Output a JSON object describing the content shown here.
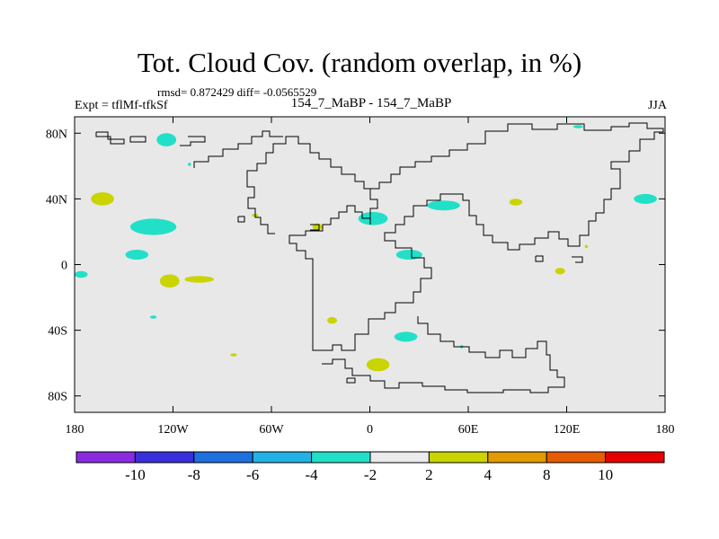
{
  "chart_data": {
    "type": "heatmap",
    "title": "Tot. Cloud Cov. (random overlap, in %)",
    "stats": "rmsd= 0.872429  diff= -0.0565529",
    "subtitle": "154_7_MaBP - 154_7_MaBP",
    "experiment": "Expt = tflMf-tfkSf",
    "season": "JJA",
    "xlim": [
      -180,
      180
    ],
    "ylim": [
      -90,
      90
    ],
    "x_ticks": [
      {
        "value": -180,
        "label": "180"
      },
      {
        "value": -120,
        "label": "120W"
      },
      {
        "value": -60,
        "label": "60W"
      },
      {
        "value": 0,
        "label": "0"
      },
      {
        "value": 60,
        "label": "60E"
      },
      {
        "value": 120,
        "label": "120E"
      },
      {
        "value": 180,
        "label": "180"
      }
    ],
    "y_ticks": [
      {
        "value": 80,
        "label": "80N"
      },
      {
        "value": 40,
        "label": "40N"
      },
      {
        "value": 0,
        "label": "0"
      },
      {
        "value": -40,
        "label": "40S"
      },
      {
        "value": -80,
        "label": "80S"
      }
    ],
    "colorbar": {
      "colors": [
        "#8a2be2",
        "#3a2fdc",
        "#1e6fe0",
        "#22b2e6",
        "#22e0c8",
        "#ebebeb",
        "#c9d400",
        "#e39a00",
        "#e65c00",
        "#e60000"
      ],
      "labels": [
        {
          "boundary": 1,
          "text": "-10"
        },
        {
          "boundary": 2,
          "text": "-8"
        },
        {
          "boundary": 3,
          "text": "-6"
        },
        {
          "boundary": 4,
          "text": "-4"
        },
        {
          "boundary": 5,
          "text": "-2"
        },
        {
          "boundary": 6,
          "text": "2"
        },
        {
          "boundary": 7,
          "text": "4"
        },
        {
          "boundary": 8,
          "text": "8"
        },
        {
          "boundary": 9,
          "text": "10"
        }
      ]
    },
    "anomaly_patches": [
      {
        "lon": -176,
        "lat": -6,
        "rx": 4,
        "ry": 2,
        "class": "-4 to -2",
        "color": "#22e0c8"
      },
      {
        "lon": -124,
        "lat": 76,
        "rx": 6,
        "ry": 4,
        "class": "-4 to -2",
        "color": "#22e0c8"
      },
      {
        "lon": -110,
        "lat": 61,
        "rx": 1,
        "ry": 1,
        "class": "-4 to -2",
        "color": "#22e0c8"
      },
      {
        "lon": -132,
        "lat": 23,
        "rx": 14,
        "ry": 5,
        "class": "-4 to -2",
        "color": "#22e0c8"
      },
      {
        "lon": -142,
        "lat": 6,
        "rx": 7,
        "ry": 3,
        "class": "-4 to -2",
        "color": "#22e0c8"
      },
      {
        "lon": -132,
        "lat": -32,
        "rx": 2,
        "ry": 1,
        "class": "-4 to -2",
        "color": "#22e0c8"
      },
      {
        "lon": 2,
        "lat": 28,
        "rx": 9,
        "ry": 4,
        "class": "-4 to -2",
        "color": "#22e0c8"
      },
      {
        "lon": 45,
        "lat": 36,
        "rx": 10,
        "ry": 3,
        "class": "-4 to -2",
        "color": "#22e0c8"
      },
      {
        "lon": 24,
        "lat": 6,
        "rx": 8,
        "ry": 3,
        "class": "-4 to -2",
        "color": "#22e0c8"
      },
      {
        "lon": 22,
        "lat": -44,
        "rx": 7,
        "ry": 3,
        "class": "-4 to -2",
        "color": "#22e0c8"
      },
      {
        "lon": 168,
        "lat": 40,
        "rx": 7,
        "ry": 3,
        "class": "-4 to -2",
        "color": "#22e0c8"
      },
      {
        "lon": 127,
        "lat": 84,
        "rx": 3,
        "ry": 1,
        "class": "-4 to -2",
        "color": "#22e0c8"
      },
      {
        "lon": 56,
        "lat": -50,
        "rx": 1,
        "ry": 1,
        "class": "-4 to -2",
        "color": "#22e0c8"
      },
      {
        "lon": -163,
        "lat": 40,
        "rx": 7,
        "ry": 4,
        "class": "2 to 4",
        "color": "#c9d400"
      },
      {
        "lon": -122,
        "lat": -10,
        "rx": 6,
        "ry": 4,
        "class": "2 to 4",
        "color": "#c9d400"
      },
      {
        "lon": -104,
        "lat": -9,
        "rx": 9,
        "ry": 2,
        "class": "2 to 4",
        "color": "#c9d400"
      },
      {
        "lon": -70,
        "lat": 30,
        "rx": 2,
        "ry": 1,
        "class": "2 to 4",
        "color": "#c9d400"
      },
      {
        "lon": -32,
        "lat": 23,
        "rx": 3,
        "ry": 2,
        "class": "2 to 4",
        "color": "#c9d400"
      },
      {
        "lon": -23,
        "lat": -34,
        "rx": 3,
        "ry": 2,
        "class": "2 to 4",
        "color": "#c9d400"
      },
      {
        "lon": -83,
        "lat": -55,
        "rx": 2,
        "ry": 1,
        "class": "2 to 4",
        "color": "#c9d400"
      },
      {
        "lon": 5,
        "lat": -61,
        "rx": 7,
        "ry": 4,
        "class": "2 to 4",
        "color": "#c9d400"
      },
      {
        "lon": 89,
        "lat": 38,
        "rx": 4,
        "ry": 2,
        "class": "2 to 4",
        "color": "#c9d400"
      },
      {
        "lon": 116,
        "lat": -4,
        "rx": 3,
        "ry": 2,
        "class": "2 to 4",
        "color": "#c9d400"
      },
      {
        "lon": 132,
        "lat": 11,
        "rx": 1,
        "ry": 1,
        "class": "2 to 4",
        "color": "#c9d400"
      }
    ]
  }
}
